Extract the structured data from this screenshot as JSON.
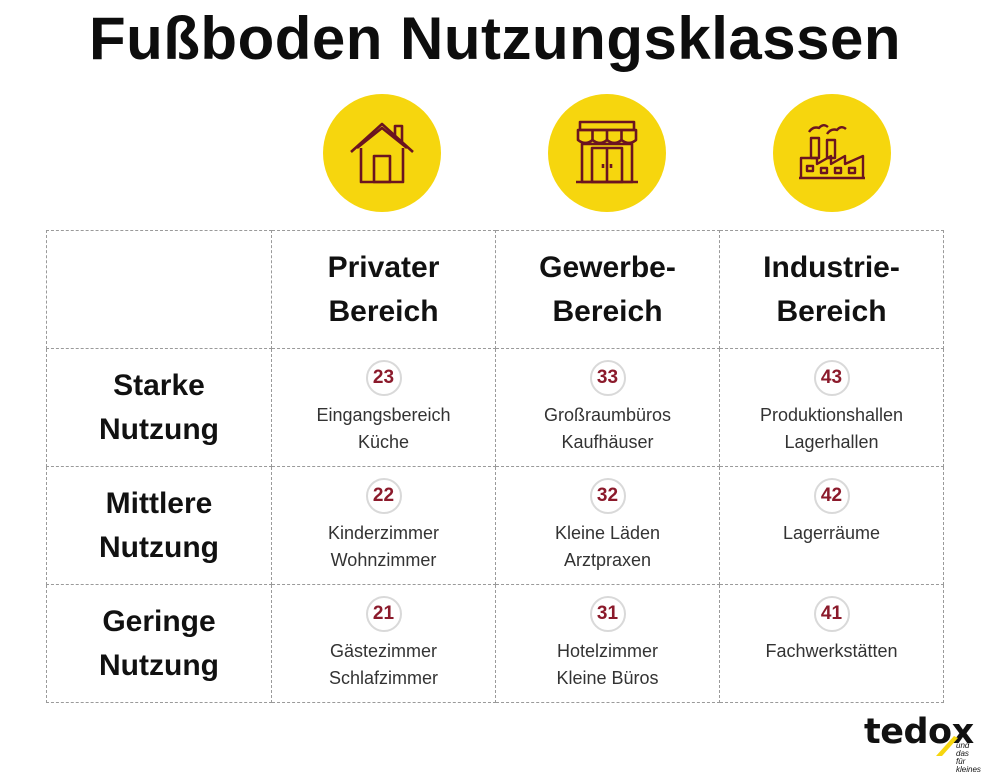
{
  "title": "Fußboden Nutzungsklassen",
  "icons": [
    "house-icon",
    "shop-icon",
    "factory-icon"
  ],
  "accent_color": "#f6d60e",
  "badge_color": "#8b1a2b",
  "columns": [
    {
      "line1": "Privater",
      "line2": "Bereich"
    },
    {
      "line1": "Gewerbe-",
      "line2": "Bereich"
    },
    {
      "line1": "Industrie-",
      "line2": "Bereich"
    }
  ],
  "rows": [
    {
      "line1": "Starke",
      "line2": "Nutzung",
      "cells": [
        {
          "num": "23",
          "uses": [
            "Eingangsbereich",
            "Küche"
          ]
        },
        {
          "num": "33",
          "uses": [
            "Großraumbüros",
            "Kaufhäuser"
          ]
        },
        {
          "num": "43",
          "uses": [
            "Produktionshallen",
            "Lagerhallen"
          ]
        }
      ]
    },
    {
      "line1": "Mittlere",
      "line2": "Nutzung",
      "cells": [
        {
          "num": "22",
          "uses": [
            "Kinderzimmer",
            "Wohnzimmer"
          ]
        },
        {
          "num": "32",
          "uses": [
            "Kleine Läden",
            "Arztpraxen"
          ]
        },
        {
          "num": "42",
          "uses": [
            "Lagerräume",
            ""
          ]
        }
      ]
    },
    {
      "line1": "Geringe",
      "line2": "Nutzung",
      "cells": [
        {
          "num": "21",
          "uses": [
            "Gästezimmer",
            "Schlafzimmer"
          ]
        },
        {
          "num": "31",
          "uses": [
            "Hotelzimmer",
            "Kleine Büros"
          ]
        },
        {
          "num": "41",
          "uses": [
            "Fachwerkstätten",
            ""
          ]
        }
      ]
    }
  ],
  "logo": {
    "name": "tedox",
    "tagline_1": "und das",
    "tagline_2": "für kleines"
  }
}
